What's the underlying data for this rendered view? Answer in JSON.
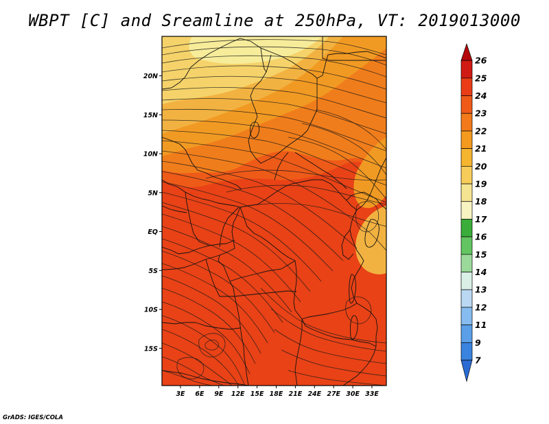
{
  "title": "WBPT [C] and Sreamline at 250hPa, VT: 2019013000",
  "footer": "GrADS: IGES/COLA",
  "map": {
    "lat_labels": [
      "20N",
      "15N",
      "10N",
      "5N",
      "EQ",
      "5S",
      "10S",
      "15S"
    ],
    "lat_values": [
      20,
      15,
      10,
      5,
      0,
      -5,
      -10,
      -15
    ],
    "lon_labels": [
      "3E",
      "6E",
      "9E",
      "12E",
      "15E",
      "18E",
      "21E",
      "24E",
      "27E",
      "30E",
      "33E"
    ],
    "lon_values": [
      3,
      6,
      9,
      12,
      15,
      18,
      21,
      24,
      27,
      30,
      33
    ],
    "fill_colors": {
      "c18_19": "#f7ec9a",
      "c19_20": "#f5d36a",
      "c20_21": "#f2b241",
      "c21_22": "#f19a23",
      "c22_23": "#f07d1b",
      "c23_24": "#ee5a18",
      "c24_25": "#e84216"
    }
  },
  "colorbar": {
    "labels": [
      "26",
      "25",
      "24",
      "23",
      "22",
      "21",
      "20",
      "19",
      "18",
      "17",
      "16",
      "15",
      "14",
      "13",
      "12",
      "11",
      "9",
      "7"
    ],
    "colors": [
      "#b3080c",
      "#d11a14",
      "#ea3d17",
      "#f05a18",
      "#f27a1a",
      "#f49a1e",
      "#f6b52f",
      "#f7cc5a",
      "#f5e592",
      "#f8f4c2",
      "#3aad3a",
      "#62c562",
      "#9ad99a",
      "#d9f0e6",
      "#bad8f2",
      "#86bcef",
      "#5a9fe8",
      "#3a83df",
      "#2a6cd4"
    ]
  }
}
